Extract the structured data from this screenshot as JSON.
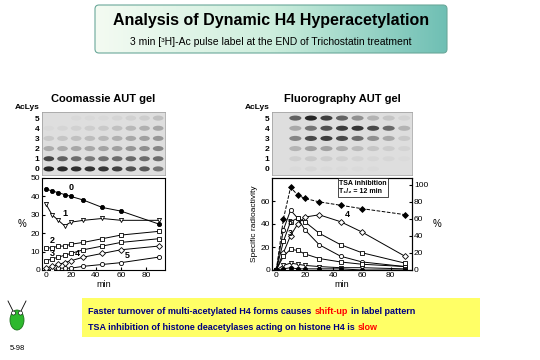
{
  "header": {
    "title": "Analysis of Dynamic H4 Hyperacetylation",
    "subtitle": "3 min [³H]-Ac pulse label at the END of Trichostatin treatment"
  },
  "gels": [
    {
      "title": "Coomassie AUT gel",
      "label": "AcLys",
      "levels": [
        5,
        4,
        3,
        2,
        1,
        0
      ],
      "ylim": [
        -0.6,
        5.6
      ],
      "tick_labels": "y"
    },
    {
      "title": "Fluorography AUT gel",
      "label": "AcLys",
      "levels": [
        5,
        4,
        3,
        2,
        1,
        0
      ],
      "ylim": [
        -0.6,
        5.6
      ],
      "tick_labels": "y"
    }
  ],
  "chart_data": [
    {
      "type": "line",
      "xlabel": "min",
      "ylabel": "%",
      "x": [
        0,
        5,
        10,
        15,
        20,
        30,
        45,
        60,
        90
      ],
      "xlim": [
        -3,
        95
      ],
      "xticks": [
        0,
        20,
        40,
        60,
        80
      ],
      "ylim": [
        0,
        50
      ],
      "yticks": [
        0,
        10,
        20,
        30,
        40,
        50
      ],
      "series": [
        {
          "name": "5",
          "color": "#000000",
          "marker": "open_circle",
          "line_style": "solid",
          "values": [
            0,
            0,
            1,
            1,
            1,
            2,
            3,
            4,
            7
          ]
        },
        {
          "name": "4",
          "color": "#000000",
          "marker": "open_diamond",
          "line_style": "solid",
          "values": [
            1,
            2,
            3,
            4,
            5,
            7,
            9,
            11,
            13
          ]
        },
        {
          "name": "3",
          "color": "#000000",
          "marker": "open_square",
          "line_style": "solid",
          "values": [
            5,
            6,
            7,
            8,
            9,
            11,
            13,
            15,
            17
          ]
        },
        {
          "name": "2",
          "color": "#000000",
          "marker": "open_square",
          "line_style": "solid",
          "values": [
            12,
            12,
            13,
            13,
            14,
            15,
            17,
            19,
            21
          ]
        },
        {
          "name": "1",
          "color": "#000000",
          "marker": "open_triangle",
          "line_style": "solid",
          "values": [
            36,
            30,
            27,
            24,
            26,
            27,
            28,
            27,
            27
          ]
        },
        {
          "name": "0",
          "color": "#000000",
          "marker": "filled_circle",
          "line_style": "solid",
          "values": [
            44,
            43,
            42,
            41,
            40,
            38,
            34,
            32,
            25
          ]
        }
      ]
    },
    {
      "type": "line",
      "xlabel": "min",
      "ylabel": "Specific radioactivity",
      "y2label": "%",
      "annotation": "TSA inhibition\nT₁/₂ = 12 min",
      "x": [
        0,
        5,
        10,
        15,
        20,
        30,
        45,
        60,
        90
      ],
      "xlim": [
        -3,
        95
      ],
      "xticks": [
        0,
        20,
        40,
        60,
        80
      ],
      "ylim": [
        0,
        80
      ],
      "yticks": [
        0,
        20,
        40,
        60
      ],
      "y2lim": [
        0,
        108
      ],
      "y2ticks": [
        0,
        20,
        40,
        60,
        80,
        100
      ],
      "series": [
        {
          "name": "5",
          "color": "#000000",
          "marker": "open_circle",
          "line_style": "solid",
          "values": [
            0,
            35,
            52,
            45,
            35,
            22,
            12,
            7,
            3
          ]
        },
        {
          "name": "4",
          "color": "#000000",
          "marker": "open_diamond",
          "line_style": "solid",
          "values": [
            0,
            15,
            30,
            40,
            46,
            48,
            42,
            33,
            12
          ]
        },
        {
          "name": "3",
          "color": "#000000",
          "marker": "open_square",
          "line_style": "solid",
          "values": [
            0,
            25,
            42,
            45,
            42,
            32,
            22,
            15,
            6
          ]
        },
        {
          "color": "#000000",
          "marker": "open_square",
          "line_style": "solid",
          "values": [
            0,
            12,
            18,
            17,
            14,
            10,
            7,
            5,
            3
          ]
        },
        {
          "color": "#000000",
          "marker": "open_triangle",
          "line_style": "solid",
          "values": [
            0,
            4,
            6,
            5,
            4,
            3,
            2,
            2,
            1
          ]
        },
        {
          "color": "#000000",
          "marker": "filled_circle",
          "line_style": "solid",
          "values": [
            0,
            1,
            2,
            1,
            1,
            1,
            1,
            0,
            0
          ]
        },
        {
          "color": "#000000",
          "marker": "filled_diamond",
          "line_style": "dashed",
          "axis": "y2",
          "values": [
            0,
            60,
            97,
            88,
            84,
            80,
            76,
            72,
            65
          ]
        }
      ]
    }
  ],
  "footer": {
    "lines": [
      [
        {
          "text": "Faster turnover of multi-acetylated H4 forms causes",
          "color": "#000080"
        },
        {
          "text": "shift-up",
          "color": "#ff0000"
        },
        {
          "text": "in label pattern",
          "color": "#000080"
        }
      ],
      [
        {
          "text": "TSA inhibition of histone deacetylases acting on histone H4 is",
          "color": "#000080"
        },
        {
          "text": "slow",
          "color": "#ff0000"
        }
      ]
    ]
  },
  "logo": {
    "label": "5-98"
  }
}
